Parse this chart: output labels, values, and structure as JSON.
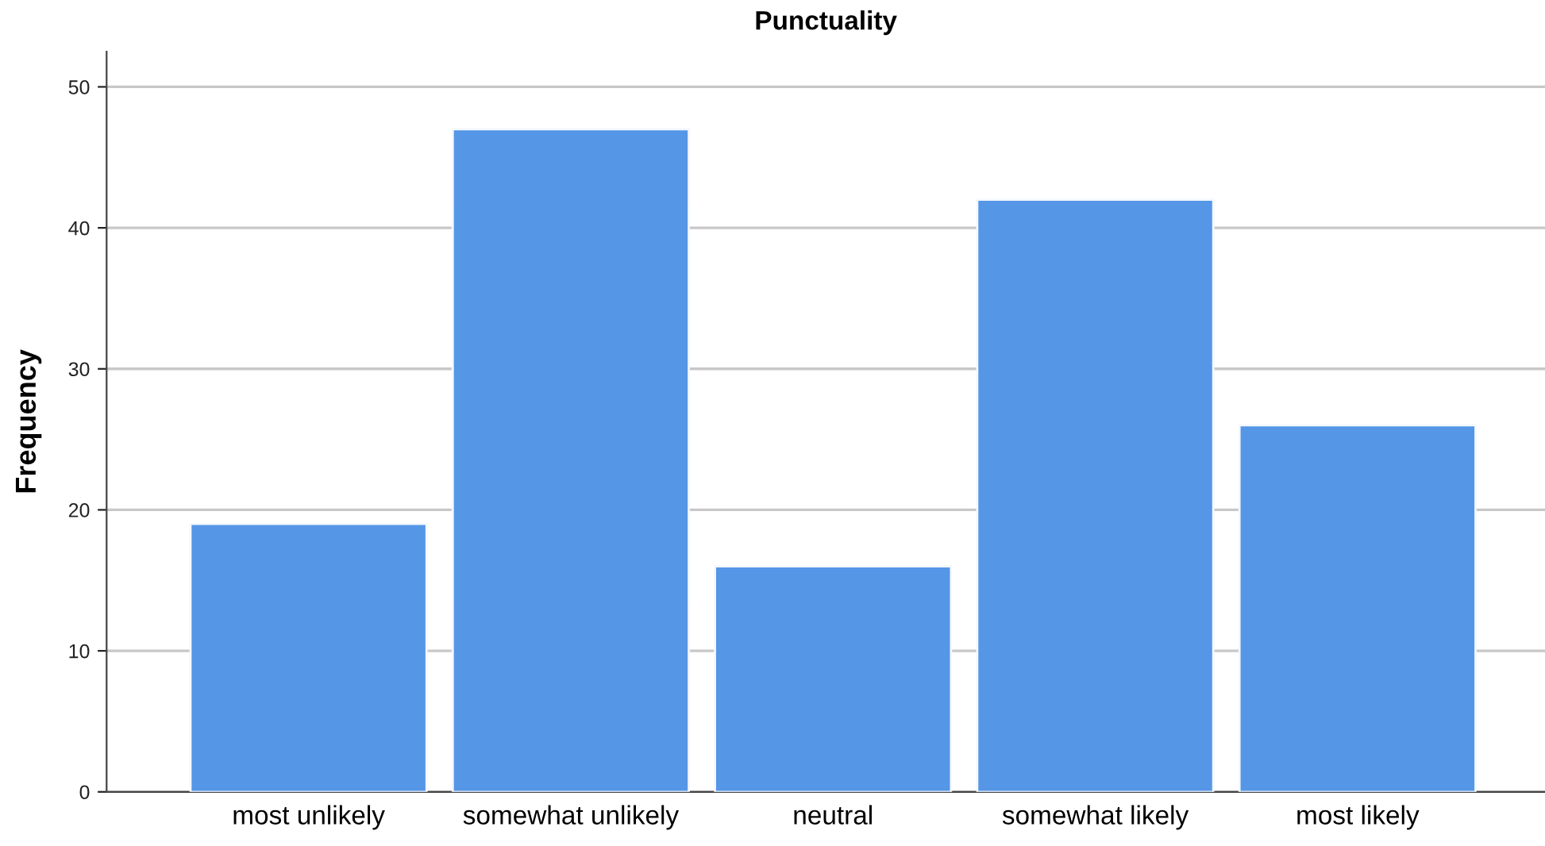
{
  "chart_data": {
    "type": "bar",
    "title": "Punctuality",
    "ylabel": "Frequency",
    "categories": [
      "most unlikely",
      "somewhat unlikely",
      "neutral",
      "somewhat likely",
      "most likely"
    ],
    "values": [
      19,
      47,
      16,
      42,
      26
    ],
    "color": "#5596e6",
    "ylim": [
      0,
      52.5
    ],
    "yticks": [
      0,
      10,
      20,
      30,
      40,
      50
    ],
    "grid": "y",
    "legend": false
  }
}
